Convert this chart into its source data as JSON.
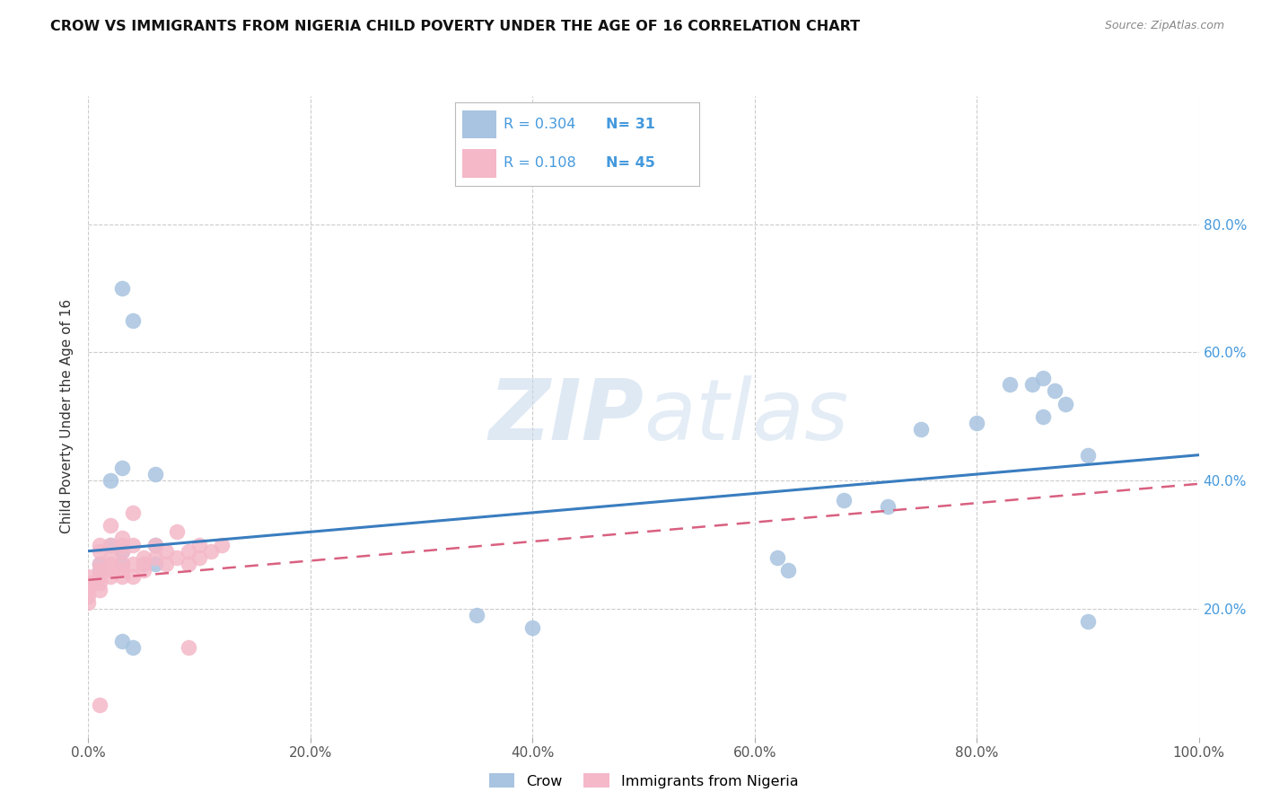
{
  "title": "CROW VS IMMIGRANTS FROM NIGERIA CHILD POVERTY UNDER THE AGE OF 16 CORRELATION CHART",
  "source": "Source: ZipAtlas.com",
  "ylabel": "Child Poverty Under the Age of 16",
  "xlim": [
    0,
    1.0
  ],
  "ylim": [
    0,
    1.0
  ],
  "xticks": [
    0.0,
    0.2,
    0.4,
    0.6,
    0.8,
    1.0
  ],
  "yticks": [
    0.2,
    0.4,
    0.6,
    0.8
  ],
  "xticklabels": [
    "0.0%",
    "20.0%",
    "40.0%",
    "60.0%",
    "80.0%",
    "100.0%"
  ],
  "yticklabels_right": [
    "20.0%",
    "40.0%",
    "60.0%",
    "80.0%"
  ],
  "crow_color": "#a8c4e0",
  "nigeria_color": "#f4b8c8",
  "crow_line_color": "#3a7dbf",
  "nigeria_line_color": "#d96080",
  "grid_color": "#cccccc",
  "watermark": "ZIPatlas",
  "legend_R_color": "#4499dd",
  "crow_R": 0.304,
  "crow_N": 31,
  "nigeria_R": 0.108,
  "nigeria_N": 45,
  "crow_x": [
    0.01,
    0.01,
    0.02,
    0.02,
    0.03,
    0.03,
    0.03,
    0.04,
    0.05,
    0.06,
    0.06,
    0.06,
    0.03,
    0.04,
    0.35,
    0.4,
    0.62,
    0.63,
    0.68,
    0.72,
    0.75,
    0.8,
    0.83,
    0.85,
    0.86,
    0.87,
    0.9,
    0.86,
    0.88,
    0.9,
    0.03
  ],
  "crow_y": [
    0.27,
    0.26,
    0.3,
    0.4,
    0.29,
    0.27,
    0.15,
    0.14,
    0.27,
    0.27,
    0.3,
    0.41,
    0.7,
    0.65,
    0.19,
    0.17,
    0.28,
    0.26,
    0.37,
    0.36,
    0.48,
    0.49,
    0.55,
    0.55,
    0.56,
    0.54,
    0.18,
    0.5,
    0.52,
    0.44,
    0.42
  ],
  "nigeria_x": [
    0.0,
    0.0,
    0.0,
    0.0,
    0.0,
    0.01,
    0.01,
    0.01,
    0.01,
    0.01,
    0.01,
    0.01,
    0.01,
    0.02,
    0.02,
    0.02,
    0.02,
    0.02,
    0.02,
    0.03,
    0.03,
    0.03,
    0.03,
    0.03,
    0.03,
    0.04,
    0.04,
    0.04,
    0.04,
    0.05,
    0.05,
    0.05,
    0.06,
    0.06,
    0.07,
    0.07,
    0.08,
    0.08,
    0.09,
    0.09,
    0.09,
    0.1,
    0.1,
    0.11,
    0.12
  ],
  "nigeria_y": [
    0.25,
    0.24,
    0.23,
    0.22,
    0.21,
    0.3,
    0.29,
    0.27,
    0.26,
    0.25,
    0.24,
    0.23,
    0.05,
    0.33,
    0.3,
    0.28,
    0.27,
    0.26,
    0.25,
    0.31,
    0.3,
    0.29,
    0.27,
    0.26,
    0.25,
    0.35,
    0.3,
    0.27,
    0.25,
    0.28,
    0.27,
    0.26,
    0.3,
    0.28,
    0.29,
    0.27,
    0.32,
    0.28,
    0.29,
    0.27,
    0.14,
    0.3,
    0.28,
    0.29,
    0.3
  ]
}
